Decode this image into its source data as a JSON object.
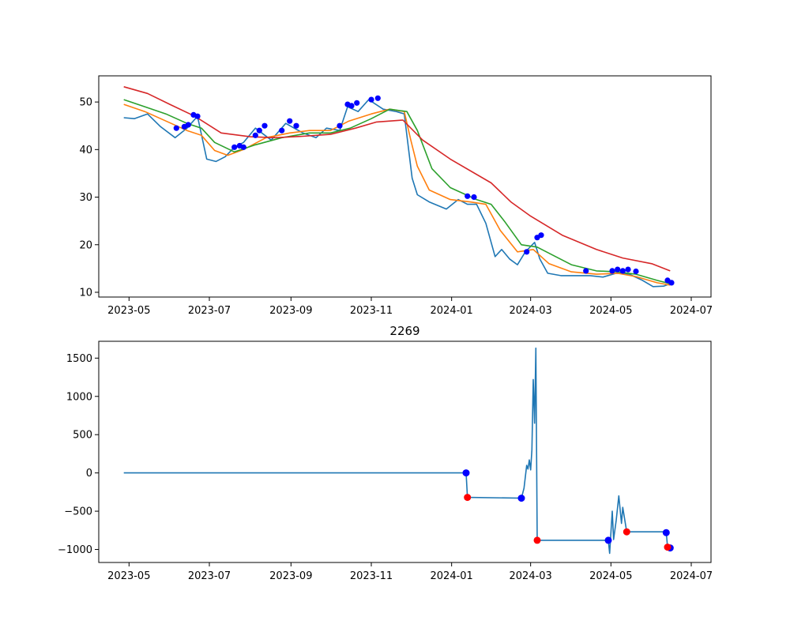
{
  "chart_data": [
    {
      "type": "line",
      "title": "",
      "xlabel": "",
      "ylabel": "",
      "x_ticks": [
        "2023-05",
        "2023-07",
        "2023-09",
        "2023-11",
        "2024-01",
        "2024-03",
        "2024-05",
        "2024-07"
      ],
      "y_ticks": [
        10,
        20,
        30,
        40,
        50
      ],
      "xlim": [
        "2023-04-08",
        "2024-07-16"
      ],
      "ylim": [
        9.0,
        55.5
      ],
      "grid": false,
      "series": [
        {
          "color": "#1f77b4",
          "points": [
            [
              "2023-04-27",
              46.7
            ],
            [
              "2023-05-05",
              46.5
            ],
            [
              "2023-05-15",
              47.5
            ],
            [
              "2023-05-25",
              44.8
            ],
            [
              "2023-06-05",
              42.5
            ],
            [
              "2023-06-14",
              44.5
            ],
            [
              "2023-06-22",
              47.0
            ],
            [
              "2023-06-29",
              38.0
            ],
            [
              "2023-07-06",
              37.5
            ],
            [
              "2023-07-13",
              38.5
            ],
            [
              "2023-07-20",
              40.5
            ],
            [
              "2023-07-27",
              41.5
            ],
            [
              "2023-08-05",
              44.5
            ],
            [
              "2023-08-17",
              42.0
            ],
            [
              "2023-08-28",
              45.5
            ],
            [
              "2023-09-10",
              43.5
            ],
            [
              "2023-09-20",
              42.5
            ],
            [
              "2023-09-28",
              44.5
            ],
            [
              "2023-10-08",
              44.0
            ],
            [
              "2023-10-14",
              49.0
            ],
            [
              "2023-10-22",
              48.0
            ],
            [
              "2023-10-30",
              50.5
            ],
            [
              "2023-11-10",
              48.5
            ],
            [
              "2023-11-20",
              48.0
            ],
            [
              "2023-11-26",
              47.5
            ],
            [
              "2023-12-02",
              34.0
            ],
            [
              "2023-12-06",
              30.5
            ],
            [
              "2023-12-15",
              29.0
            ],
            [
              "2023-12-28",
              27.5
            ],
            [
              "2024-01-06",
              29.5
            ],
            [
              "2024-01-13",
              28.5
            ],
            [
              "2024-01-20",
              28.5
            ],
            [
              "2024-01-27",
              24.5
            ],
            [
              "2024-02-03",
              17.5
            ],
            [
              "2024-02-08",
              19.0
            ],
            [
              "2024-02-14",
              17.0
            ],
            [
              "2024-02-20",
              15.8
            ],
            [
              "2024-02-26",
              18.5
            ],
            [
              "2024-03-04",
              20.5
            ],
            [
              "2024-03-08",
              17.0
            ],
            [
              "2024-03-14",
              14.0
            ],
            [
              "2024-03-24",
              13.5
            ],
            [
              "2024-04-05",
              13.5
            ],
            [
              "2024-04-15",
              13.5
            ],
            [
              "2024-04-25",
              13.2
            ],
            [
              "2024-05-05",
              14.0
            ],
            [
              "2024-05-15",
              13.8
            ],
            [
              "2024-05-25",
              12.5
            ],
            [
              "2024-06-02",
              11.2
            ],
            [
              "2024-06-10",
              11.3
            ],
            [
              "2024-06-15",
              11.8
            ]
          ]
        },
        {
          "color": "#ff7f0e",
          "points": [
            [
              "2023-04-27",
              49.5
            ],
            [
              "2023-05-13",
              48.0
            ],
            [
              "2023-05-29",
              46.0
            ],
            [
              "2023-06-14",
              44.0
            ],
            [
              "2023-06-25",
              43.0
            ],
            [
              "2023-07-05",
              39.8
            ],
            [
              "2023-07-15",
              38.8
            ],
            [
              "2023-07-27",
              40.0
            ],
            [
              "2023-08-13",
              42.5
            ],
            [
              "2023-08-31",
              43.5
            ],
            [
              "2023-09-15",
              44.0
            ],
            [
              "2023-10-01",
              44.0
            ],
            [
              "2023-10-15",
              46.0
            ],
            [
              "2023-11-01",
              47.5
            ],
            [
              "2023-11-15",
              48.5
            ],
            [
              "2023-11-26",
              48.0
            ],
            [
              "2023-12-01",
              42.0
            ],
            [
              "2023-12-06",
              36.5
            ],
            [
              "2023-12-15",
              31.5
            ],
            [
              "2023-12-31",
              29.5
            ],
            [
              "2024-01-15",
              29.0
            ],
            [
              "2024-01-27",
              28.5
            ],
            [
              "2024-02-07",
              23.0
            ],
            [
              "2024-02-20",
              18.5
            ],
            [
              "2024-03-03",
              19.0
            ],
            [
              "2024-03-15",
              16.0
            ],
            [
              "2024-04-01",
              14.3
            ],
            [
              "2024-04-20",
              13.8
            ],
            [
              "2024-05-06",
              14.0
            ],
            [
              "2024-05-20",
              13.3
            ],
            [
              "2024-06-05",
              12.0
            ],
            [
              "2024-06-15",
              11.5
            ]
          ]
        },
        {
          "color": "#2ca02c",
          "points": [
            [
              "2023-04-27",
              50.5
            ],
            [
              "2023-05-13",
              49.0
            ],
            [
              "2023-05-29",
              47.5
            ],
            [
              "2023-06-14",
              45.5
            ],
            [
              "2023-06-25",
              44.5
            ],
            [
              "2023-07-05",
              41.5
            ],
            [
              "2023-07-20",
              39.5
            ],
            [
              "2023-08-05",
              41.0
            ],
            [
              "2023-08-25",
              42.5
            ],
            [
              "2023-09-15",
              43.5
            ],
            [
              "2023-10-01",
              43.5
            ],
            [
              "2023-10-16",
              44.5
            ],
            [
              "2023-11-01",
              46.5
            ],
            [
              "2023-11-15",
              48.5
            ],
            [
              "2023-11-28",
              48.0
            ],
            [
              "2023-12-06",
              44.0
            ],
            [
              "2023-12-17",
              36.0
            ],
            [
              "2023-12-31",
              32.0
            ],
            [
              "2024-01-20",
              29.5
            ],
            [
              "2024-01-31",
              28.5
            ],
            [
              "2024-02-10",
              25.0
            ],
            [
              "2024-02-23",
              20.0
            ],
            [
              "2024-03-06",
              19.5
            ],
            [
              "2024-03-20",
              17.5
            ],
            [
              "2024-04-01",
              15.8
            ],
            [
              "2024-04-20",
              14.5
            ],
            [
              "2024-05-05",
              14.3
            ],
            [
              "2024-05-20",
              13.8
            ],
            [
              "2024-06-05",
              12.5
            ],
            [
              "2024-06-15",
              11.8
            ]
          ]
        },
        {
          "color": "#d62728",
          "points": [
            [
              "2023-04-27",
              53.2
            ],
            [
              "2023-05-15",
              51.8
            ],
            [
              "2023-06-01",
              49.5
            ],
            [
              "2023-06-20",
              47.0
            ],
            [
              "2023-07-10",
              43.5
            ],
            [
              "2023-08-01",
              42.7
            ],
            [
              "2023-08-20",
              42.5
            ],
            [
              "2023-09-10",
              42.8
            ],
            [
              "2023-10-01",
              43.2
            ],
            [
              "2023-10-20",
              44.5
            ],
            [
              "2023-11-05",
              45.8
            ],
            [
              "2023-11-25",
              46.2
            ],
            [
              "2023-12-10",
              42.0
            ],
            [
              "2023-12-31",
              38.0
            ],
            [
              "2024-01-31",
              33.0
            ],
            [
              "2024-02-15",
              29.0
            ],
            [
              "2024-03-01",
              26.0
            ],
            [
              "2024-03-25",
              22.0
            ],
            [
              "2024-04-20",
              19.0
            ],
            [
              "2024-05-10",
              17.2
            ],
            [
              "2024-06-01",
              16.0
            ],
            [
              "2024-06-15",
              14.5
            ]
          ]
        }
      ],
      "markers": {
        "color": "#0000ff",
        "points": [
          [
            "2023-06-06",
            44.5
          ],
          [
            "2023-06-12",
            44.8
          ],
          [
            "2023-06-15",
            45.2
          ],
          [
            "2023-06-19",
            47.3
          ],
          [
            "2023-06-22",
            47.0
          ],
          [
            "2023-07-20",
            40.5
          ],
          [
            "2023-07-24",
            40.8
          ],
          [
            "2023-07-27",
            40.5
          ],
          [
            "2023-08-05",
            43.0
          ],
          [
            "2023-08-08",
            44.0
          ],
          [
            "2023-08-12",
            45.0
          ],
          [
            "2023-08-25",
            44.0
          ],
          [
            "2023-08-31",
            46.0
          ],
          [
            "2023-09-05",
            45.0
          ],
          [
            "2023-10-08",
            45.0
          ],
          [
            "2023-10-14",
            49.5
          ],
          [
            "2023-10-17",
            49.2
          ],
          [
            "2023-10-21",
            49.8
          ],
          [
            "2023-11-01",
            50.5
          ],
          [
            "2023-11-06",
            50.8
          ],
          [
            "2024-01-13",
            30.2
          ],
          [
            "2024-01-18",
            30.0
          ],
          [
            "2024-02-27",
            18.5
          ],
          [
            "2024-03-06",
            21.5
          ],
          [
            "2024-03-09",
            22.0
          ],
          [
            "2024-04-12",
            14.5
          ],
          [
            "2024-05-02",
            14.5
          ],
          [
            "2024-05-06",
            14.8
          ],
          [
            "2024-05-10",
            14.5
          ],
          [
            "2024-05-14",
            14.8
          ],
          [
            "2024-05-20",
            14.4
          ],
          [
            "2024-06-13",
            12.5
          ],
          [
            "2024-06-16",
            12.0
          ]
        ]
      }
    },
    {
      "type": "line",
      "title": "2269",
      "xlabel": "",
      "ylabel": "",
      "x_ticks": [
        "2023-05",
        "2023-07",
        "2023-09",
        "2023-11",
        "2024-01",
        "2024-03",
        "2024-05",
        "2024-07"
      ],
      "y_ticks": [
        -1000,
        -500,
        0,
        500,
        1000,
        1500
      ],
      "xlim": [
        "2023-04-08",
        "2024-07-16"
      ],
      "ylim": [
        -1170,
        1720
      ],
      "grid": false,
      "series": [
        {
          "color": "#1f77b4",
          "points": [
            [
              "2023-04-27",
              0
            ],
            [
              "2024-01-12",
              0
            ],
            [
              "2024-01-13",
              -320
            ],
            [
              "2024-02-23",
              -330
            ],
            [
              "2024-02-25",
              -200
            ],
            [
              "2024-02-27",
              100
            ],
            [
              "2024-02-28",
              50
            ],
            [
              "2024-02-29",
              170
            ],
            [
              "2024-03-01",
              40
            ],
            [
              "2024-03-02",
              300
            ],
            [
              "2024-03-03",
              1220
            ],
            [
              "2024-03-04",
              650
            ],
            [
              "2024-03-05",
              1630
            ],
            [
              "2024-03-06",
              -880
            ],
            [
              "2024-04-29",
              -880
            ],
            [
              "2024-04-30",
              -1050
            ],
            [
              "2024-05-02",
              -500
            ],
            [
              "2024-05-03",
              -870
            ],
            [
              "2024-05-05",
              -620
            ],
            [
              "2024-05-07",
              -300
            ],
            [
              "2024-05-09",
              -660
            ],
            [
              "2024-05-10",
              -450
            ],
            [
              "2024-05-13",
              -770
            ],
            [
              "2024-06-12",
              -770
            ],
            [
              "2024-06-13",
              -970
            ],
            [
              "2024-06-16",
              -970
            ]
          ]
        }
      ],
      "markers": [
        {
          "color": "#0000ff",
          "points": [
            [
              "2024-01-12",
              0
            ],
            [
              "2024-02-23",
              -330
            ],
            [
              "2024-04-29",
              -880
            ],
            [
              "2024-06-12",
              -780
            ],
            [
              "2024-06-15",
              -980
            ]
          ]
        },
        {
          "color": "#ff0000",
          "points": [
            [
              "2024-01-13",
              -320
            ],
            [
              "2024-03-06",
              -880
            ],
            [
              "2024-05-13",
              -770
            ],
            [
              "2024-06-13",
              -970
            ]
          ]
        }
      ]
    }
  ]
}
